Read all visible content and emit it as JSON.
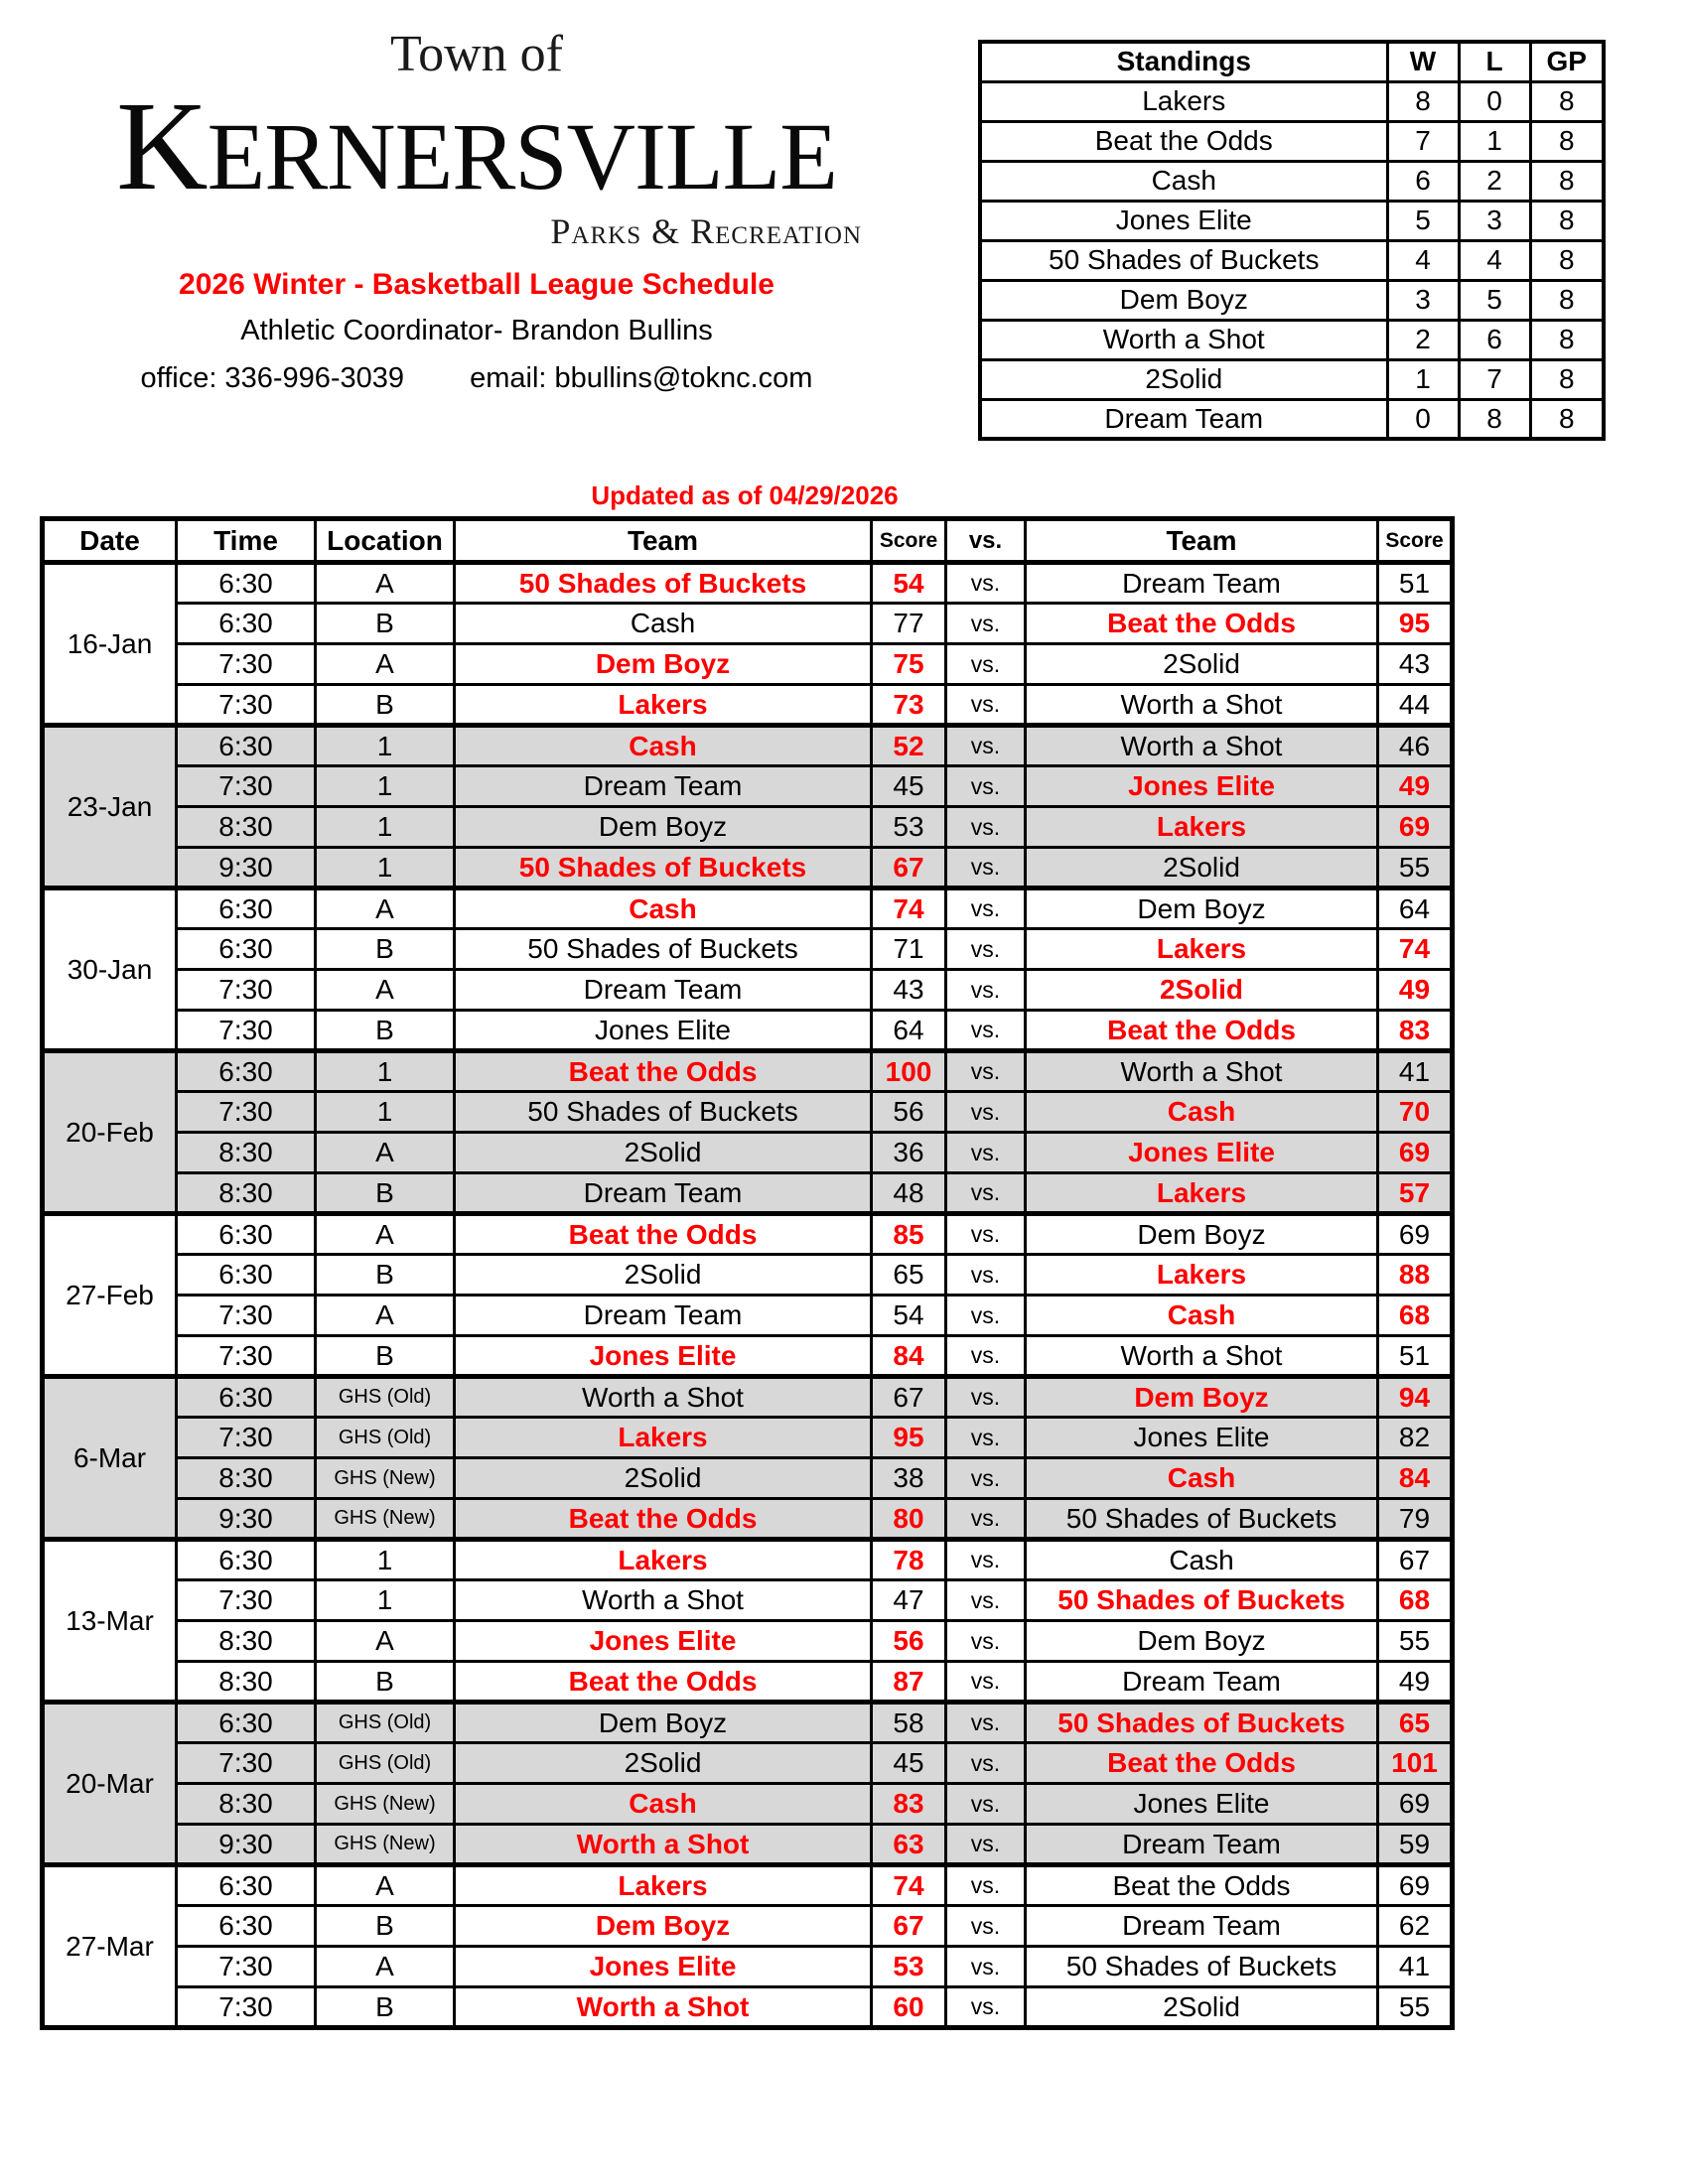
{
  "header": {
    "logo_top": "Town of",
    "logo_main": "Kernersville",
    "logo_sub": "Parks & Recreation",
    "title": "2026 Winter - Basketball League Schedule",
    "coordinator": "Athletic Coordinator- Brandon Bullins",
    "office": "office: 336-996-3039",
    "email": "email: bbullins@toknc.com"
  },
  "updated": "Updated as of 04/29/2026",
  "colors": {
    "accent_red": "#ff0000",
    "row_shade": "#d8d8d8"
  },
  "standings": {
    "headers": [
      "Standings",
      "W",
      "L",
      "GP"
    ],
    "rows": [
      [
        "Lakers",
        "8",
        "0",
        "8"
      ],
      [
        "Beat the Odds",
        "7",
        "1",
        "8"
      ],
      [
        "Cash",
        "6",
        "2",
        "8"
      ],
      [
        "Jones Elite",
        "5",
        "3",
        "8"
      ],
      [
        "50 Shades of Buckets",
        "4",
        "4",
        "8"
      ],
      [
        "Dem Boyz",
        "3",
        "5",
        "8"
      ],
      [
        "Worth a Shot",
        "2",
        "6",
        "8"
      ],
      [
        "2Solid",
        "1",
        "7",
        "8"
      ],
      [
        "Dream Team",
        "0",
        "8",
        "8"
      ]
    ]
  },
  "schedule": {
    "headers": [
      "Date",
      "Time",
      "Location",
      "Team",
      "Score",
      "vs.",
      "Team",
      "Score"
    ],
    "vs_label": "vs.",
    "blocks": [
      {
        "date": "16-Jan",
        "shaded": false,
        "games": [
          {
            "time": "6:30",
            "loc": "A",
            "team1": "50 Shades of Buckets",
            "score1": "54",
            "win1": true,
            "team2": "Dream Team",
            "score2": "51",
            "win2": false
          },
          {
            "time": "6:30",
            "loc": "B",
            "team1": "Cash",
            "score1": "77",
            "win1": false,
            "team2": "Beat the Odds",
            "score2": "95",
            "win2": true
          },
          {
            "time": "7:30",
            "loc": "A",
            "team1": "Dem Boyz",
            "score1": "75",
            "win1": true,
            "team2": "2Solid",
            "score2": "43",
            "win2": false
          },
          {
            "time": "7:30",
            "loc": "B",
            "team1": "Lakers",
            "score1": "73",
            "win1": true,
            "team2": "Worth a Shot",
            "score2": "44",
            "win2": false
          }
        ]
      },
      {
        "date": "23-Jan",
        "shaded": true,
        "games": [
          {
            "time": "6:30",
            "loc": "1",
            "team1": "Cash",
            "score1": "52",
            "win1": true,
            "team2": "Worth a Shot",
            "score2": "46",
            "win2": false
          },
          {
            "time": "7:30",
            "loc": "1",
            "team1": "Dream Team",
            "score1": "45",
            "win1": false,
            "team2": "Jones Elite",
            "score2": "49",
            "win2": true
          },
          {
            "time": "8:30",
            "loc": "1",
            "team1": "Dem Boyz",
            "score1": "53",
            "win1": false,
            "team2": "Lakers",
            "score2": "69",
            "win2": true
          },
          {
            "time": "9:30",
            "loc": "1",
            "team1": "50 Shades of Buckets",
            "score1": "67",
            "win1": true,
            "team2": "2Solid",
            "score2": "55",
            "win2": false
          }
        ]
      },
      {
        "date": "30-Jan",
        "shaded": false,
        "games": [
          {
            "time": "6:30",
            "loc": "A",
            "team1": "Cash",
            "score1": "74",
            "win1": true,
            "team2": "Dem Boyz",
            "score2": "64",
            "win2": false
          },
          {
            "time": "6:30",
            "loc": "B",
            "team1": "50 Shades of Buckets",
            "score1": "71",
            "win1": false,
            "team2": "Lakers",
            "score2": "74",
            "win2": true
          },
          {
            "time": "7:30",
            "loc": "A",
            "team1": "Dream Team",
            "score1": "43",
            "win1": false,
            "team2": "2Solid",
            "score2": "49",
            "win2": true
          },
          {
            "time": "7:30",
            "loc": "B",
            "team1": "Jones Elite",
            "score1": "64",
            "win1": false,
            "team2": "Beat the Odds",
            "score2": "83",
            "win2": true
          }
        ]
      },
      {
        "date": "20-Feb",
        "shaded": true,
        "games": [
          {
            "time": "6:30",
            "loc": "1",
            "team1": "Beat the Odds",
            "score1": "100",
            "win1": true,
            "team2": "Worth a Shot",
            "score2": "41",
            "win2": false
          },
          {
            "time": "7:30",
            "loc": "1",
            "team1": "50 Shades of Buckets",
            "score1": "56",
            "win1": false,
            "team2": "Cash",
            "score2": "70",
            "win2": true
          },
          {
            "time": "8:30",
            "loc": "A",
            "team1": "2Solid",
            "score1": "36",
            "win1": false,
            "team2": "Jones Elite",
            "score2": "69",
            "win2": true
          },
          {
            "time": "8:30",
            "loc": "B",
            "team1": "Dream Team",
            "score1": "48",
            "win1": false,
            "team2": "Lakers",
            "score2": "57",
            "win2": true
          }
        ]
      },
      {
        "date": "27-Feb",
        "shaded": false,
        "games": [
          {
            "time": "6:30",
            "loc": "A",
            "team1": "Beat the Odds",
            "score1": "85",
            "win1": true,
            "team2": "Dem Boyz",
            "score2": "69",
            "win2": false
          },
          {
            "time": "6:30",
            "loc": "B",
            "team1": "2Solid",
            "score1": "65",
            "win1": false,
            "team2": "Lakers",
            "score2": "88",
            "win2": true
          },
          {
            "time": "7:30",
            "loc": "A",
            "team1": "Dream Team",
            "score1": "54",
            "win1": false,
            "team2": "Cash",
            "score2": "68",
            "win2": true
          },
          {
            "time": "7:30",
            "loc": "B",
            "team1": "Jones Elite",
            "score1": "84",
            "win1": true,
            "team2": "Worth a Shot",
            "score2": "51",
            "win2": false
          }
        ]
      },
      {
        "date": "6-Mar",
        "shaded": true,
        "games": [
          {
            "time": "6:30",
            "loc": "GHS (Old)",
            "team1": "Worth a Shot",
            "score1": "67",
            "win1": false,
            "team2": "Dem Boyz",
            "score2": "94",
            "win2": true
          },
          {
            "time": "7:30",
            "loc": "GHS (Old)",
            "team1": "Lakers",
            "score1": "95",
            "win1": true,
            "team2": "Jones Elite",
            "score2": "82",
            "win2": false
          },
          {
            "time": "8:30",
            "loc": "GHS (New)",
            "team1": "2Solid",
            "score1": "38",
            "win1": false,
            "team2": "Cash",
            "score2": "84",
            "win2": true
          },
          {
            "time": "9:30",
            "loc": "GHS (New)",
            "team1": "Beat the Odds",
            "score1": "80",
            "win1": true,
            "team2": "50 Shades of Buckets",
            "score2": "79",
            "win2": false
          }
        ]
      },
      {
        "date": "13-Mar",
        "shaded": false,
        "games": [
          {
            "time": "6:30",
            "loc": "1",
            "team1": "Lakers",
            "score1": "78",
            "win1": true,
            "team2": "Cash",
            "score2": "67",
            "win2": false
          },
          {
            "time": "7:30",
            "loc": "1",
            "team1": "Worth a Shot",
            "score1": "47",
            "win1": false,
            "team2": "50 Shades of Buckets",
            "score2": "68",
            "win2": true
          },
          {
            "time": "8:30",
            "loc": "A",
            "team1": "Jones Elite",
            "score1": "56",
            "win1": true,
            "team2": "Dem Boyz",
            "score2": "55",
            "win2": false
          },
          {
            "time": "8:30",
            "loc": "B",
            "team1": "Beat the Odds",
            "score1": "87",
            "win1": true,
            "team2": "Dream Team",
            "score2": "49",
            "win2": false
          }
        ]
      },
      {
        "date": "20-Mar",
        "shaded": true,
        "games": [
          {
            "time": "6:30",
            "loc": "GHS (Old)",
            "team1": "Dem Boyz",
            "score1": "58",
            "win1": false,
            "team2": "50 Shades of Buckets",
            "score2": "65",
            "win2": true
          },
          {
            "time": "7:30",
            "loc": "GHS (Old)",
            "team1": "2Solid",
            "score1": "45",
            "win1": false,
            "team2": "Beat the Odds",
            "score2": "101",
            "win2": true
          },
          {
            "time": "8:30",
            "loc": "GHS (New)",
            "team1": "Cash",
            "score1": "83",
            "win1": true,
            "team2": "Jones Elite",
            "score2": "69",
            "win2": false
          },
          {
            "time": "9:30",
            "loc": "GHS (New)",
            "team1": "Worth a Shot",
            "score1": "63",
            "win1": true,
            "team2": "Dream Team",
            "score2": "59",
            "win2": false
          }
        ]
      },
      {
        "date": "27-Mar",
        "shaded": false,
        "games": [
          {
            "time": "6:30",
            "loc": "A",
            "team1": "Lakers",
            "score1": "74",
            "win1": true,
            "team2": "Beat the Odds",
            "score2": "69",
            "win2": false
          },
          {
            "time": "6:30",
            "loc": "B",
            "team1": "Dem Boyz",
            "score1": "67",
            "win1": true,
            "team2": "Dream Team",
            "score2": "62",
            "win2": false
          },
          {
            "time": "7:30",
            "loc": "A",
            "team1": "Jones Elite",
            "score1": "53",
            "win1": true,
            "team2": "50 Shades of Buckets",
            "score2": "41",
            "win2": false
          },
          {
            "time": "7:30",
            "loc": "B",
            "team1": "Worth a Shot",
            "score1": "60",
            "win1": true,
            "team2": "2Solid",
            "score2": "55",
            "win2": false
          }
        ]
      }
    ]
  }
}
